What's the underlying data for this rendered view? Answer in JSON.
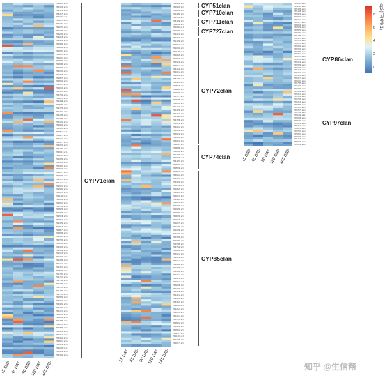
{
  "chart_data": {
    "type": "heatmap",
    "columns": [
      "15 DAF",
      "45 DAF",
      "90 DAF",
      "120 DAF",
      "145 DAF"
    ],
    "colorbar": {
      "title": "log2(FPKM+1)",
      "ticks": [
        "8",
        "6",
        "4",
        "2",
        "0"
      ]
    },
    "panels": [
      {
        "rows": 160,
        "id_samples": [
          "Phf09847.s2.1",
          "Phf01795.s2.1",
          "Phf41754.s2.1",
          "Phf43675.s2.1",
          "Phf02118.s2.1",
          "Phf02155.s2.1",
          "Phf02154.s2.1",
          "Phf02151.s2.1",
          "Phf02189.s2.1",
          "Phf02182.s2.1",
          "Phf02230.s2.1",
          "Phf03092.s2.1",
          "Phf03066.s2.1",
          "Phf02988.s2.1",
          "Phf02967.s2.1",
          "Phf02897.s2.1",
          "Phf02861.s2.1",
          "Phf36056.s2.1",
          "Phf36080.s2.1",
          "Phf36888.s2.1",
          "Phf32100.s2.1",
          "Phf20880.s2.1",
          "Phf28070.s2.1",
          "Phf30006.s2.1",
          "Phf30070.s2.1",
          "Phf30306.s2.1",
          "Phf35861.s2.1",
          "Phf37908.s2.1",
          "Phf08547.s2.1",
          "Phf04888.s2.1",
          "Phf05856.s2.1",
          "Phf27700.s2.1",
          "Phf13661.s2.1",
          "Phf12380.s2.1",
          "Phf34050.s2.1",
          "Phf31604.s2.1",
          "Phf36508.s2.1",
          "Phf39595.s2.1",
          "Phf38511.s2.1",
          "Phf09271.s2.1",
          "Phf40334.s2.1",
          "Phf03171.s2.1",
          "Phf40994.s2.1",
          "Phf42981.s2.1",
          "Phf03117.s2.1",
          "Phf02123.s2.1",
          "Phf03950.s2.1",
          "Phf41060.s2.1",
          "Phf34097.s2.1",
          "Phf26299.s2.1",
          "Phf40179.s2.1",
          "Phf39159.s2.1",
          "Phf35717.s2.1",
          "Phf12311.s2.1",
          "Phf26337.s2.1",
          "Phf29860.s2.1",
          "Phf06337.s2.1",
          "Phf11228.s2.1",
          "Phf06590.s2.1",
          "Phf18101.s2.1",
          "Phf07230.s2.1",
          "Phf05856.s2.1",
          "Phf16980.s2.1",
          "Phf15530.s2.1",
          "Phf38627.s2.1",
          "Phf24656.s2.1",
          "Phf35940.s2.1",
          "Phf38077.s2.1",
          "Phf06886.s2.1",
          "Phf35889.s2.1",
          "Phf07966.s2.1",
          "Phf36186.s2.1",
          "Phf34905.s2.1",
          "Phf16440.s2.1",
          "Phf01349.s2.1",
          "Phf19865.s2.1",
          "Phf24588.s2.1",
          "Phf13218.s2.1",
          "Phf13219.s2.1",
          "Phf05188.s2.1",
          "Phf17063.s2.1",
          "Phf17522.s2.1",
          "Phf17588.s2.1",
          "Phf23259.s2.1",
          "Phf17269.s2.1",
          "Phf17788.s2.1",
          "Phf07100.s2.1",
          "Phf25550.s2.1",
          "Phf07200.s2.1",
          "Phf01062.s2.1",
          "Phf01065.s2.1",
          "Phf31347.s2.1",
          "Phf02214.s2.1",
          "Phf32040.s2.1",
          "Phf17055.s2.1",
          "Phf32055.s2.1",
          "Phf07080.s2.1",
          "Phf01208.s2.1",
          "Phf23277.s2.1",
          "Phf01028.s2.1",
          "Phf05327.s2.1",
          "Phf01236.s2.1",
          "Phf11005.s2.1",
          "Phf05168.s2.1",
          "Phf01268.s2.1"
        ],
        "brackets": [
          {
            "label": "CYP71clan",
            "from": 0,
            "to": 160
          }
        ]
      },
      {
        "rows": 160,
        "id_samples": [
          "Phf03464.s2.1",
          "Phf03465.s2.1",
          "Phf02800.s2.1",
          "Phf14984.s2.1",
          "Phf07706.s2.1",
          "Phf41698.s2.1",
          "Phf02680.s2.1",
          "Phf03110.s2.1",
          "Phf03165.s2.1",
          "Phf12510.s2.1",
          "Phf23430.s2.1",
          "Phf14798.s2.1",
          "Phf03011.s2.1",
          "Phf10004.s2.1",
          "Phf11360.s2.1",
          "Phf03220.s2.1",
          "Phf06205.s2.1",
          "Phf01042.s2.1",
          "Phf00121.s2.1",
          "Phf41842.s2.1",
          "Phf10412.s2.1",
          "Phf18045.s2.1",
          "Phf51199.s2.1",
          "Phf14802.s2.1",
          "Phf05800.s2.1",
          "Phf08525.s2.1",
          "Phf00995.s2.1",
          "Phf07979.s2.1",
          "Phf00780.s2.1",
          "Phf00795.s2.1",
          "Phf14740.s2.1",
          "Phf14795.s2.1",
          "Phf14727.s2.1",
          "Phf41120.s2.1",
          "Phf47080.s2.1",
          "Phf05942.s2.1",
          "Phf01012.s2.1",
          "Phf12060.s2.1",
          "Phf02632.s2.1",
          "Phf04900.s2.1",
          "Phf02931.s2.1",
          "Phf02627.s2.1",
          "Phf08880.s2.1",
          "Phf06100.s2.1",
          "Phf12880.s2.1",
          "Phf11096.s2.1",
          "Phf41057.s2.1",
          "Phf09868.s2.1",
          "Phf05990.s2.1",
          "Phf05036.s2.1",
          "Phf49814.s2.1",
          "Phf49802.s2.1",
          "Phf01700.s2.1",
          "Phf11350.s2.1",
          "Phf03025.s2.1",
          "Phf09205.s2.1",
          "Phf02347.s2.1",
          "Phf14883.s2.1",
          "Phf00700.s2.1",
          "Phf10856.s2.1",
          "Phf03856.s2.1",
          "Phf06957.s2.1",
          "Phf00796.s2.1",
          "Phf03578.s2.1",
          "Phf02576.s2.1",
          "Phf01760.s2.1",
          "Phf10798.s2.1",
          "Phf01796.s2.1",
          "Phf07886.s2.1",
          "Phf07884.s2.1",
          "Phf07885.s2.1",
          "Phf47698.s2.1",
          "Phf02980.s2.1",
          "Phf01314.s2.1",
          "Phf10190.s2.1",
          "Phf01321.s2.1",
          "Phf26096.s2.1",
          "Phf01589.s2.1",
          "Phf01599.s2.1",
          "Phf01614.s2.1",
          "Phf42031.s2.1",
          "Phf03311.s2.1",
          "Phf02290.s2.1",
          "Phf01560.s2.1",
          "Phf01740.s2.1",
          "Phf14214.s2.1",
          "Phf44106.s2.1",
          "Phf44023.s2.1",
          "Phf11004.s2.1",
          "Phf12513.s2.1",
          "Phf12515.s2.1",
          "Phf12517.s2.1",
          "Phf07055.s2.1",
          "Phf05264.s2.1",
          "Phf05265.s2.1",
          "Phf05263.s2.1",
          "Phf02571.s2.1",
          "Phf11207.s2.1",
          "Phf31780.s2.1",
          "Phf30771.s2.1"
        ],
        "brackets": [
          {
            "label": "CYP51clan",
            "from": 0,
            "to": 3
          },
          {
            "label": "CYP710clan",
            "from": 3,
            "to": 7
          },
          {
            "label": "CYP711clan",
            "from": 7,
            "to": 11
          },
          {
            "label": "CYP727clan",
            "from": 11,
            "to": 16
          },
          {
            "label": "CYP72clan",
            "from": 16,
            "to": 66
          },
          {
            "label": "CYP74clan",
            "from": 66,
            "to": 78
          },
          {
            "label": "CYP85clan",
            "from": 78,
            "to": 160
          }
        ]
      },
      {
        "rows": 60,
        "id_samples": [
          "Phf42224.s2.1",
          "Phf38325.s2.1",
          "Phf43255.s2.1",
          "Phf41489.s2.1",
          "Phf03930.s2.1",
          "Phf00200.s2.1",
          "Phf01313.s2.1",
          "Phf15279.s2.1",
          "Phf06200.s2.1",
          "Phf45296.s2.1",
          "Phf05853.s2.1",
          "Phf46852.s2.1",
          "Phf14880.s2.1",
          "Phf01370.s2.1",
          "Phf07665.s2.1",
          "Phf48953.s2.1",
          "Phf46002.s2.1",
          "Phf07025.s2.1",
          "Phf49250.s2.1",
          "Phf07012.s2.1",
          "Phf12913.s2.1",
          "Phf12103.s2.1",
          "Phf40540.s2.1",
          "Phf45550.s2.1",
          "Phf02300.s2.1",
          "Phf43370.s2.1",
          "Phf83374.s2.1",
          "Phf33343.s2.1",
          "Phf40574.s2.1",
          "Phf40601.s2.1",
          "Phf17983.s2.1",
          "Phf42862.s2.1",
          "Phf32658.s2.1",
          "Phf16796.s2.1",
          "Phf33347.s2.1",
          "Phf15544.s2.1",
          "Phf07999.s2.1",
          "Phf12043.s2.1",
          "Phf15550.s2.1",
          "Phf35007.s2.1",
          "Phf07075.s2.1",
          "Phf07600.s2.1",
          "Phf11548.s2.1",
          "Phf56788.s2.1",
          "Phf00196.s2.1",
          "Phf30749.s2.1",
          "Phf53741.s2.1",
          "Phf00741.s2.1",
          "Phf07007.s2.1",
          "Phf03907.s2.1",
          "Phf02030.s2.1",
          "Phf44876.s2.1",
          "Phf00730.s2.1",
          "Phf10300.s2.1"
        ],
        "brackets": [
          {
            "label": "CYP86clan",
            "from": 0,
            "to": 47
          },
          {
            "label": "CYP97clan",
            "from": 47,
            "to": 54
          }
        ]
      }
    ]
  },
  "watermark": "知乎 @生信帮"
}
